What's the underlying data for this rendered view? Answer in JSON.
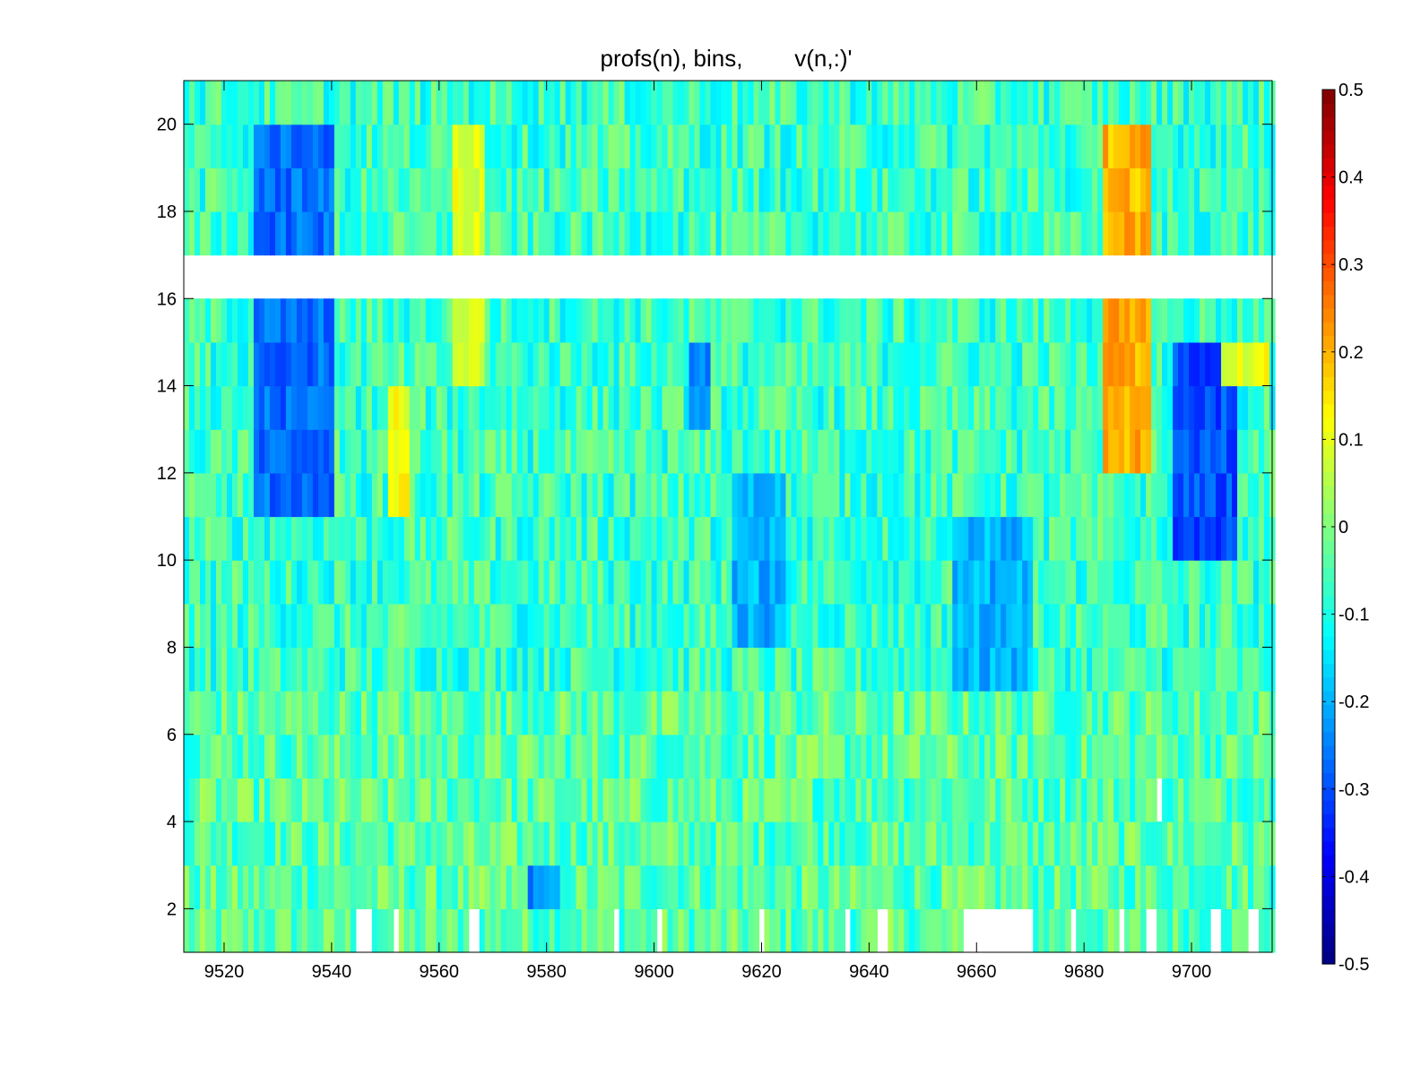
{
  "chart_data": {
    "type": "heatmap",
    "title": "profs(n), bins,        v(n,:)'",
    "xlabel": "",
    "ylabel": "",
    "xlim": [
      9512.5,
      9715
    ],
    "ylim": [
      1,
      21
    ],
    "xticks": [
      9520,
      9540,
      9560,
      9580,
      9600,
      9620,
      9640,
      9660,
      9680,
      9700
    ],
    "yticks": [
      2,
      4,
      6,
      8,
      10,
      12,
      14,
      16,
      18,
      20
    ],
    "x_start": 9512.5,
    "x_step": 1,
    "rows": [
      1,
      2,
      3,
      4,
      5,
      6,
      7,
      8,
      9,
      10,
      11,
      12,
      13,
      14,
      15,
      16,
      17,
      18,
      19,
      20
    ],
    "missing_rows": [
      16
    ],
    "missing_cells_row1": [
      [
        9544,
        9547
      ],
      [
        9551,
        9552
      ],
      [
        9565,
        9567
      ],
      [
        9592,
        9593
      ],
      [
        9600,
        9601
      ],
      [
        9619,
        9620
      ],
      [
        9635,
        9636
      ],
      [
        9641,
        9643
      ],
      [
        9657,
        9670
      ],
      [
        9677,
        9678
      ],
      [
        9686,
        9687
      ],
      [
        9691,
        9693
      ],
      [
        9703,
        9705
      ],
      [
        9710,
        9712
      ]
    ],
    "missing_cells_row4": [
      [
        9693,
        9694
      ]
    ],
    "features": [
      {
        "x": [
          9525,
          9540
        ],
        "rows": [
          11,
          20
        ],
        "value": -0.27
      },
      {
        "x": [
          9550,
          9554
        ],
        "rows": [
          11,
          14
        ],
        "value": 0.12
      },
      {
        "x": [
          9562,
          9568
        ],
        "rows": [
          14,
          20
        ],
        "value": 0.1
      },
      {
        "x": [
          9576,
          9582
        ],
        "rows": [
          2,
          3
        ],
        "value": -0.24
      },
      {
        "x": [
          9606,
          9610
        ],
        "rows": [
          13,
          15
        ],
        "value": -0.25
      },
      {
        "x": [
          9614,
          9624
        ],
        "rows": [
          8,
          12
        ],
        "value": -0.2
      },
      {
        "x": [
          9655,
          9670
        ],
        "rows": [
          7,
          11
        ],
        "value": -0.2
      },
      {
        "x": [
          9683,
          9692
        ],
        "rows": [
          12,
          20
        ],
        "value": 0.2
      },
      {
        "x": [
          9696,
          9708
        ],
        "rows": [
          10,
          15
        ],
        "value": -0.3
      },
      {
        "x": [
          9705,
          9714
        ],
        "rows": [
          14,
          15
        ],
        "value": 0.1
      }
    ],
    "colorbar": {
      "colormap": "jet",
      "clim": [
        -0.5,
        0.5
      ],
      "ticks": [
        0.5,
        0.4,
        0.3,
        0.2,
        0.1,
        0,
        -0.1,
        -0.2,
        -0.3,
        -0.4,
        -0.5
      ]
    }
  }
}
